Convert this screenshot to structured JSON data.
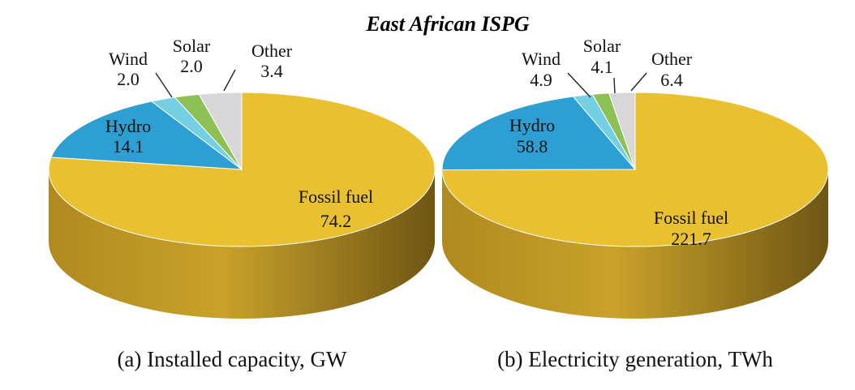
{
  "title": "East African ISPG",
  "colors": {
    "Fossil fuel": "#E9C02F",
    "Hydro": "#2E9FD3",
    "Wind": "#75CFE3",
    "Solar": "#8DC156",
    "Other": "#D7D7D7"
  },
  "chart_data": [
    {
      "type": "pie",
      "caption": "(a) Installed capacity, GW",
      "categories": [
        "Fossil fuel",
        "Hydro",
        "Wind",
        "Solar",
        "Other"
      ],
      "values": [
        74.2,
        14.1,
        2.0,
        2.0,
        3.4
      ],
      "value_labels": [
        "74.2",
        "14.1",
        "2.0",
        "2.0",
        "3.4"
      ],
      "unit": "GW"
    },
    {
      "type": "pie",
      "caption": "(b) Electricity generation, TWh",
      "categories": [
        "Fossil fuel",
        "Hydro",
        "Wind",
        "Solar",
        "Other"
      ],
      "values": [
        221.7,
        58.8,
        4.9,
        4.1,
        6.4
      ],
      "value_labels": [
        "221.7",
        "58.8",
        "4.9",
        "4.1",
        "6.4"
      ],
      "unit": "TWh"
    }
  ]
}
